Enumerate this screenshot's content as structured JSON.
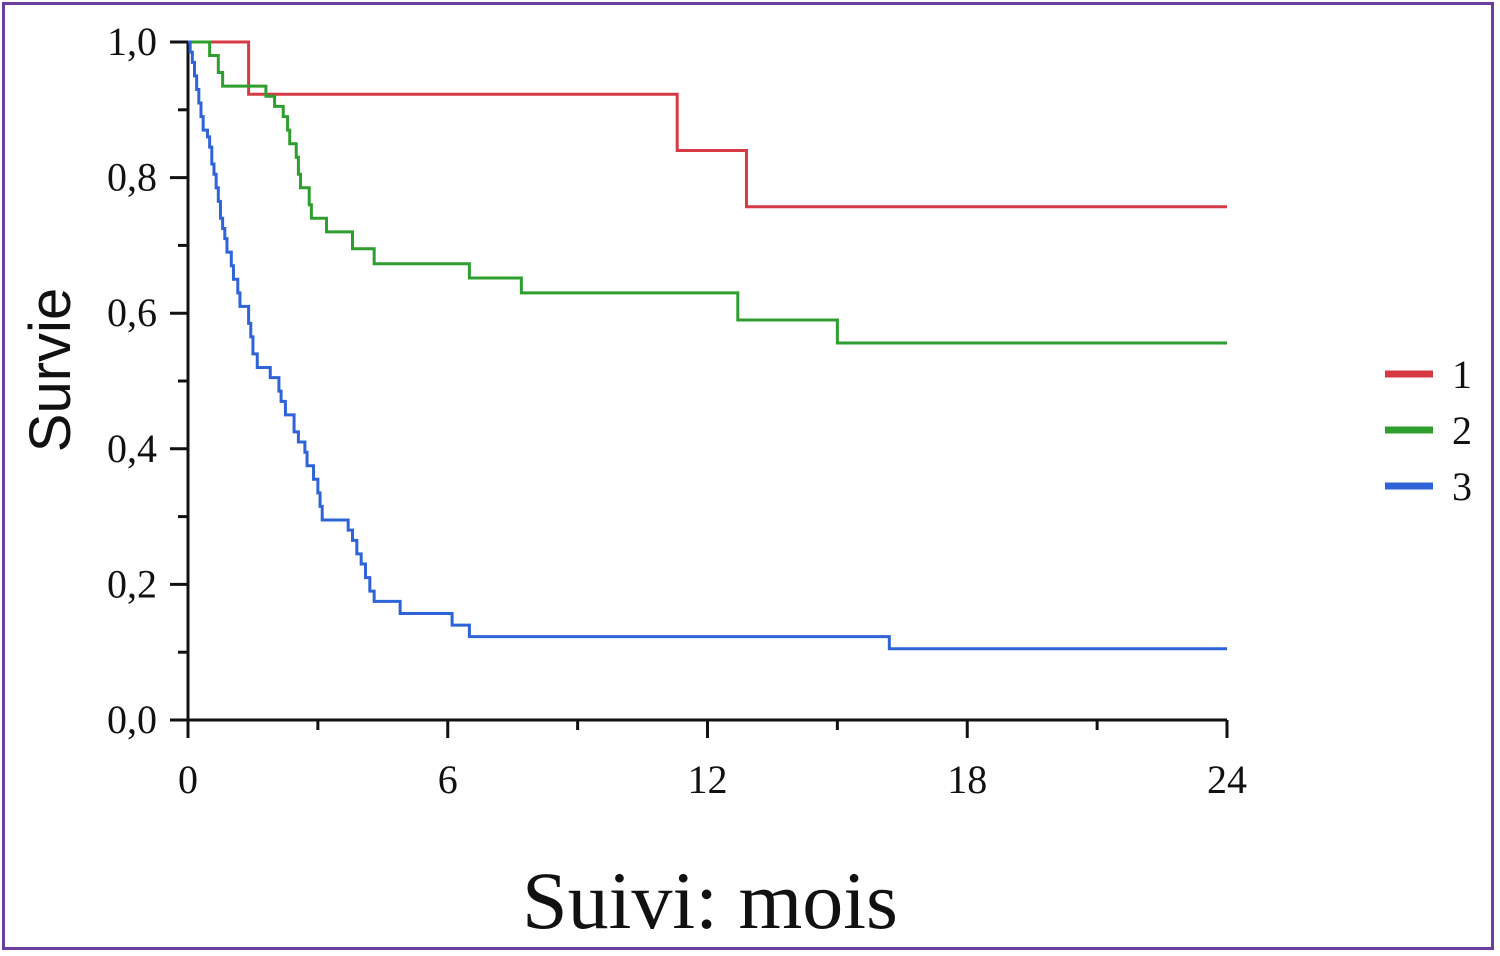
{
  "chart_data": {
    "type": "line",
    "xlabel": "Suivi: mois",
    "ylabel": "Survie",
    "xlim": [
      0,
      24
    ],
    "ylim": [
      0,
      1
    ],
    "x_ticks": [
      0,
      6,
      12,
      18,
      24
    ],
    "x_tick_labels": [
      "0",
      "6",
      "12",
      "18",
      "24"
    ],
    "y_ticks": [
      0,
      0.2,
      0.4,
      0.6,
      0.8,
      1.0
    ],
    "y_tick_labels": [
      "0,0",
      "0,2",
      "0,4",
      "0,6",
      "0,8",
      "1,0"
    ],
    "grid": false,
    "legend_position": "right",
    "series": [
      {
        "name": "1",
        "color": "#d63a45",
        "steps": [
          [
            0,
            1.0
          ],
          [
            1.4,
            0.923
          ],
          [
            11.3,
            0.84
          ],
          [
            12.9,
            0.757
          ],
          [
            24,
            0.757
          ]
        ]
      },
      {
        "name": "2",
        "color": "#2e9e2e",
        "steps": [
          [
            0,
            1.0
          ],
          [
            0.5,
            0.98
          ],
          [
            0.7,
            0.955
          ],
          [
            0.8,
            0.935
          ],
          [
            1.8,
            0.92
          ],
          [
            2.0,
            0.905
          ],
          [
            2.2,
            0.89
          ],
          [
            2.3,
            0.87
          ],
          [
            2.35,
            0.85
          ],
          [
            2.5,
            0.83
          ],
          [
            2.55,
            0.805
          ],
          [
            2.6,
            0.785
          ],
          [
            2.8,
            0.76
          ],
          [
            2.85,
            0.74
          ],
          [
            3.2,
            0.72
          ],
          [
            3.8,
            0.695
          ],
          [
            4.3,
            0.673
          ],
          [
            6.5,
            0.652
          ],
          [
            7.7,
            0.63
          ],
          [
            12.7,
            0.59
          ],
          [
            15.0,
            0.556
          ],
          [
            24,
            0.556
          ]
        ]
      },
      {
        "name": "3",
        "color": "#2f63d8",
        "steps": [
          [
            0,
            1.0
          ],
          [
            0.05,
            0.985
          ],
          [
            0.1,
            0.97
          ],
          [
            0.15,
            0.95
          ],
          [
            0.2,
            0.93
          ],
          [
            0.25,
            0.91
          ],
          [
            0.3,
            0.89
          ],
          [
            0.35,
            0.87
          ],
          [
            0.45,
            0.86
          ],
          [
            0.5,
            0.845
          ],
          [
            0.55,
            0.82
          ],
          [
            0.6,
            0.805
          ],
          [
            0.65,
            0.785
          ],
          [
            0.7,
            0.765
          ],
          [
            0.75,
            0.74
          ],
          [
            0.8,
            0.725
          ],
          [
            0.85,
            0.71
          ],
          [
            0.9,
            0.69
          ],
          [
            1.0,
            0.67
          ],
          [
            1.05,
            0.65
          ],
          [
            1.15,
            0.63
          ],
          [
            1.2,
            0.61
          ],
          [
            1.4,
            0.585
          ],
          [
            1.45,
            0.565
          ],
          [
            1.5,
            0.54
          ],
          [
            1.6,
            0.52
          ],
          [
            1.9,
            0.505
          ],
          [
            2.1,
            0.485
          ],
          [
            2.15,
            0.47
          ],
          [
            2.25,
            0.45
          ],
          [
            2.45,
            0.425
          ],
          [
            2.55,
            0.41
          ],
          [
            2.7,
            0.395
          ],
          [
            2.75,
            0.375
          ],
          [
            2.9,
            0.355
          ],
          [
            3.0,
            0.335
          ],
          [
            3.05,
            0.315
          ],
          [
            3.1,
            0.295
          ],
          [
            3.7,
            0.28
          ],
          [
            3.8,
            0.265
          ],
          [
            3.9,
            0.245
          ],
          [
            4.0,
            0.23
          ],
          [
            4.1,
            0.21
          ],
          [
            4.2,
            0.19
          ],
          [
            4.3,
            0.175
          ],
          [
            4.9,
            0.157
          ],
          [
            6.1,
            0.14
          ],
          [
            6.5,
            0.123
          ],
          [
            16.2,
            0.105
          ],
          [
            24,
            0.105
          ]
        ]
      }
    ]
  }
}
